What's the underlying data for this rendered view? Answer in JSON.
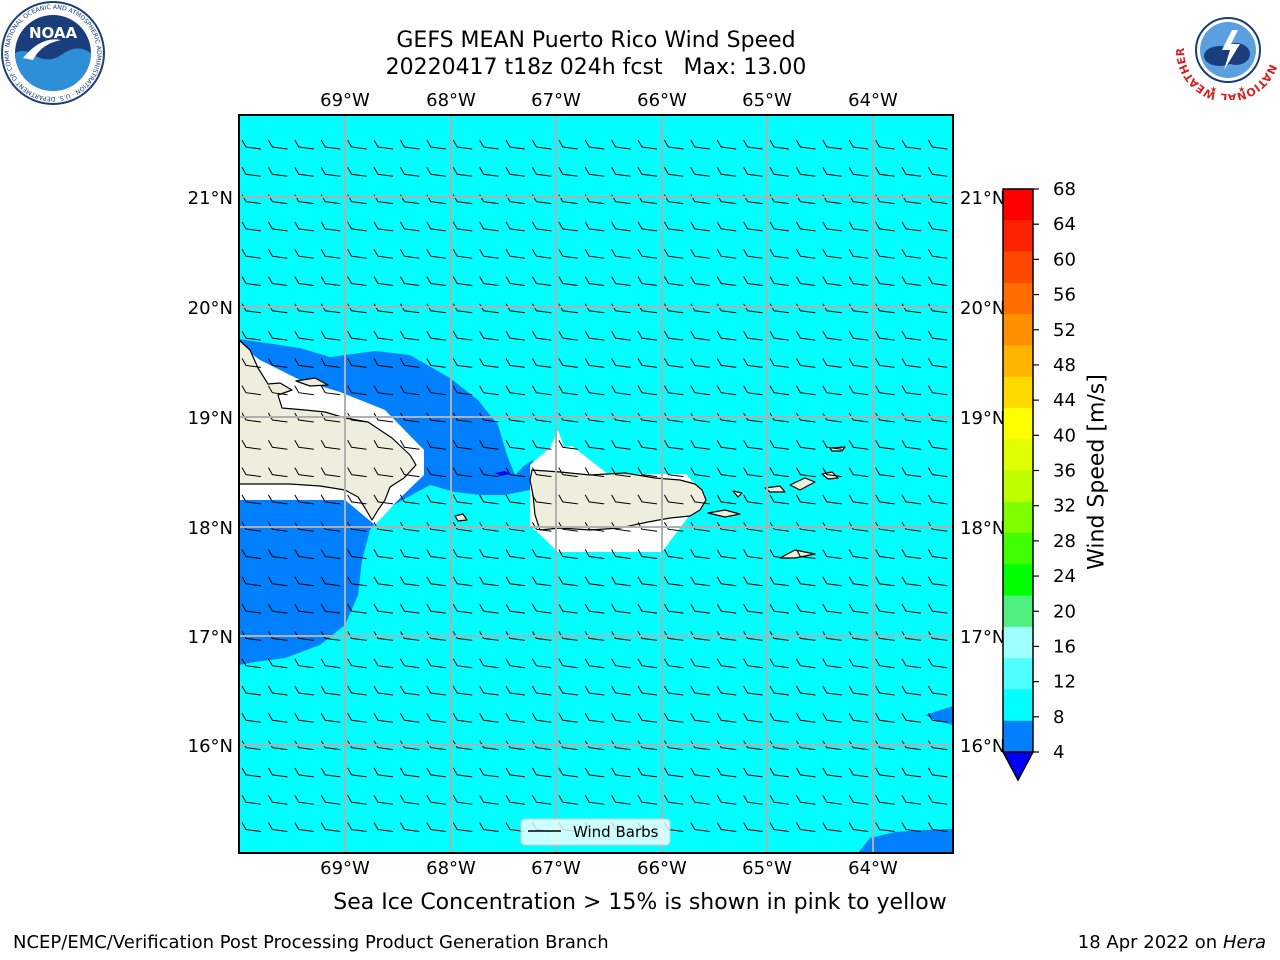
{
  "header": {
    "title_line1": "GEFS MEAN Puerto Rico Wind Speed",
    "title_line2": "20220417 t18z 024h fcst   Max: 13.00"
  },
  "logos": {
    "noaa_text": "NOAA",
    "noaa_ring_text": "NATIONAL OCEANIC AND ATMOSPHERIC ADMINISTRATION · U.S. DEPARTMENT OF COMMERCE",
    "nws_ring_text": "NATIONAL WEATHER SERVICE"
  },
  "map": {
    "lon_ticks": [
      "69°W",
      "68°W",
      "67°W",
      "66°W",
      "65°W",
      "64°W"
    ],
    "lat_ticks": [
      "21°N",
      "20°N",
      "19°N",
      "18°N",
      "17°N",
      "16°N"
    ],
    "legend_label": "Wind Barbs",
    "gridlines": true,
    "colors": {
      "water_8_12": "#00ffff",
      "water_4_8": "#0080ff",
      "land": "#eeeedd",
      "gridline": "#b0b0b0"
    }
  },
  "colorbar": {
    "label": "Wind Speed [m/s]",
    "levels": [
      "68",
      "64",
      "60",
      "56",
      "52",
      "48",
      "44",
      "40",
      "36",
      "32",
      "28",
      "24",
      "20",
      "16",
      "12",
      "8",
      "4"
    ],
    "colors": [
      "#ff0000",
      "#ff2400",
      "#ff4800",
      "#ff6c00",
      "#ff9000",
      "#ffb400",
      "#ffd800",
      "#ffff00",
      "#e0ff00",
      "#c0ff00",
      "#80ff00",
      "#40ff00",
      "#00ff00",
      "#50f080",
      "#a0ffff",
      "#50ffff",
      "#00ffff",
      "#0080ff"
    ],
    "under_color": "#0000ff"
  },
  "caption": "Sea Ice Concentration > 15% is shown in pink to yellow",
  "footer": {
    "left": "NCEP/EMC/Verification Post Processing Product Generation Branch",
    "right_date": "18 Apr 2022 on ",
    "right_host": "Hera"
  }
}
